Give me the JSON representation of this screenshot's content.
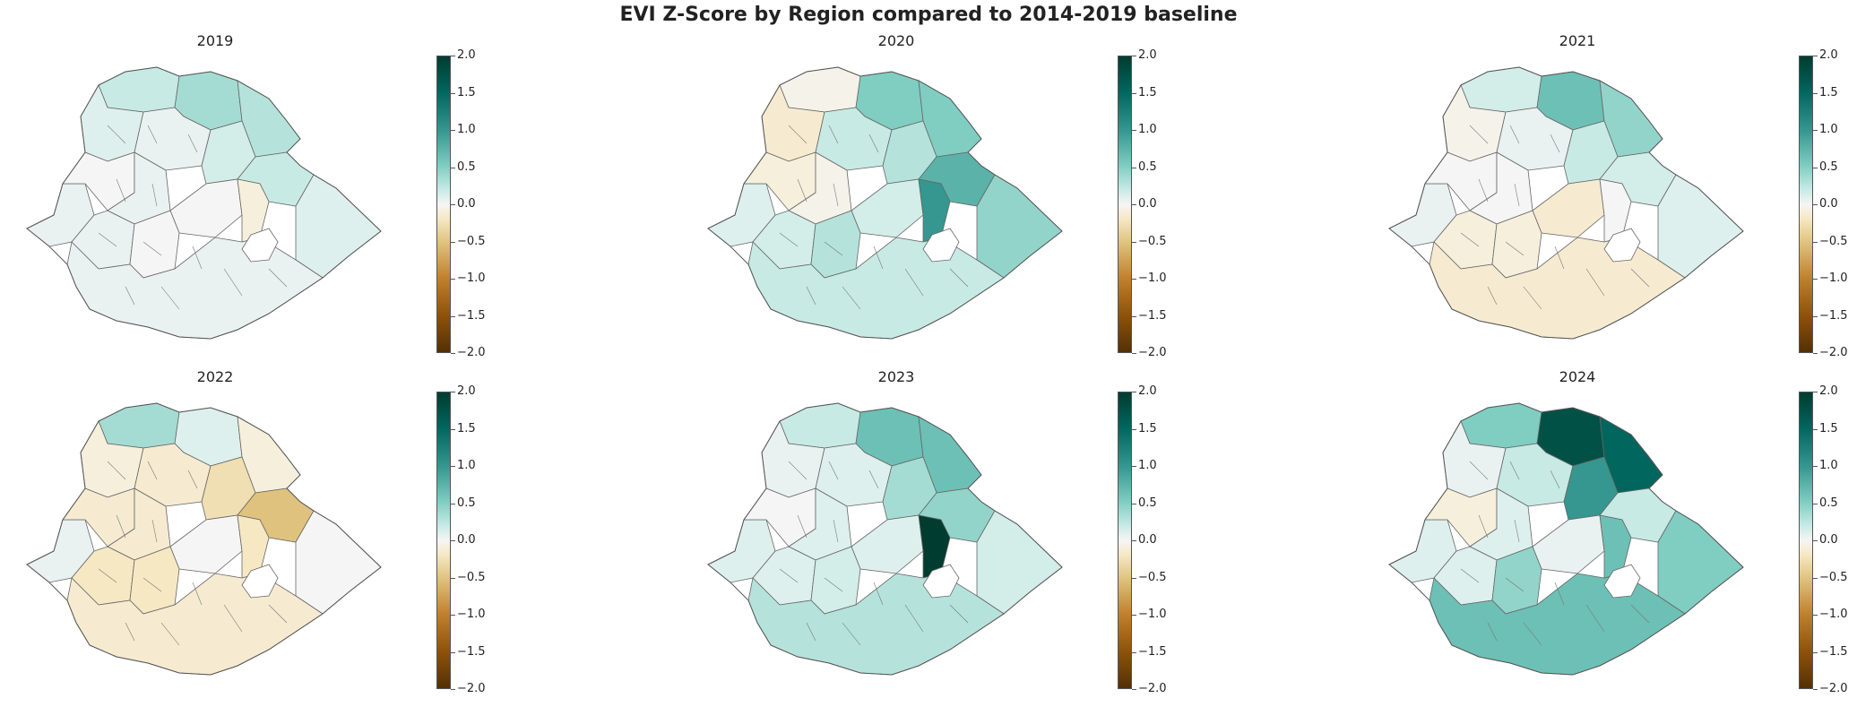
{
  "figure": {
    "title": "EVI Z-Score by Region compared to 2014-2019 baseline"
  },
  "colorbar": {
    "colormap": "BrBG",
    "range": [
      -2.0,
      2.0
    ],
    "ticks": [
      "2.0",
      "1.5",
      "1.0",
      "0.5",
      "0.0",
      "−0.5",
      "−1.0",
      "−1.5",
      "−2.0"
    ],
    "colors": [
      "#003c30",
      "#01665e",
      "#35978f",
      "#80cdc1",
      "#c7eae5",
      "#f5f5f5",
      "#f6e8c3",
      "#dfc27d",
      "#bf812d",
      "#8c510a",
      "#543005"
    ]
  },
  "panels": [
    {
      "year": "2019",
      "regions": {
        "r1": 0.1,
        "r2": 0.4,
        "r3": 0.2,
        "r4": 0.6,
        "r5": 0.1,
        "r6": 0.0,
        "r7": 0.1,
        "r8": 0.5,
        "r9": 0.3,
        "r10": 0.1,
        "r11": 0.4,
        "r12": 0.0,
        "r13": -0.2,
        "r14": 0.0,
        "r15": 0.2,
        "r16": 0.1
      }
    },
    {
      "year": "2020",
      "regions": {
        "r1": 0.2,
        "r2": -0.1,
        "r3": -0.3,
        "r4": 0.8,
        "r5": 0.4,
        "r6": -0.2,
        "r7": -0.1,
        "r8": 0.8,
        "r9": 0.5,
        "r10": 0.3,
        "r11": 1.0,
        "r12": 0.3,
        "r13": 1.2,
        "r14": 0.5,
        "r15": 0.7,
        "r16": 0.4
      }
    },
    {
      "year": "2021",
      "regions": {
        "r1": 0.1,
        "r2": 0.3,
        "r3": -0.1,
        "r4": 0.9,
        "r5": 0.1,
        "r6": 0.0,
        "r7": 0.0,
        "r8": 0.7,
        "r9": 0.4,
        "r10": -0.2,
        "r11": 0.3,
        "r12": -0.3,
        "r13": 0.0,
        "r14": -0.2,
        "r15": 0.2,
        "r16": -0.3
      }
    },
    {
      "year": "2022",
      "regions": {
        "r1": 0.1,
        "r2": 0.6,
        "r3": -0.2,
        "r4": 0.2,
        "r5": -0.3,
        "r6": -0.3,
        "r7": -0.3,
        "r8": -0.2,
        "r9": -0.5,
        "r10": -0.4,
        "r11": -0.8,
        "r12": 0.0,
        "r13": -0.4,
        "r14": -0.4,
        "r15": 0.0,
        "r16": -0.3
      }
    },
    {
      "year": "2023",
      "regions": {
        "r1": 0.2,
        "r2": 0.4,
        "r3": 0.1,
        "r4": 0.9,
        "r5": 0.2,
        "r6": 0.0,
        "r7": 0.2,
        "r8": 0.9,
        "r9": 0.6,
        "r10": 0.2,
        "r11": 0.7,
        "r12": 0.2,
        "r13": 2.0,
        "r14": 0.3,
        "r15": 0.3,
        "r16": 0.5
      }
    },
    {
      "year": "2024",
      "regions": {
        "r1": 0.2,
        "r2": 0.8,
        "r3": 0.1,
        "r4": 1.8,
        "r5": 0.4,
        "r6": -0.2,
        "r7": 0.2,
        "r8": 1.6,
        "r9": 1.2,
        "r10": 0.2,
        "r11": 0.4,
        "r12": 0.1,
        "r13": 0.9,
        "r14": 0.7,
        "r15": 0.8,
        "r16": 0.9
      }
    }
  ]
}
